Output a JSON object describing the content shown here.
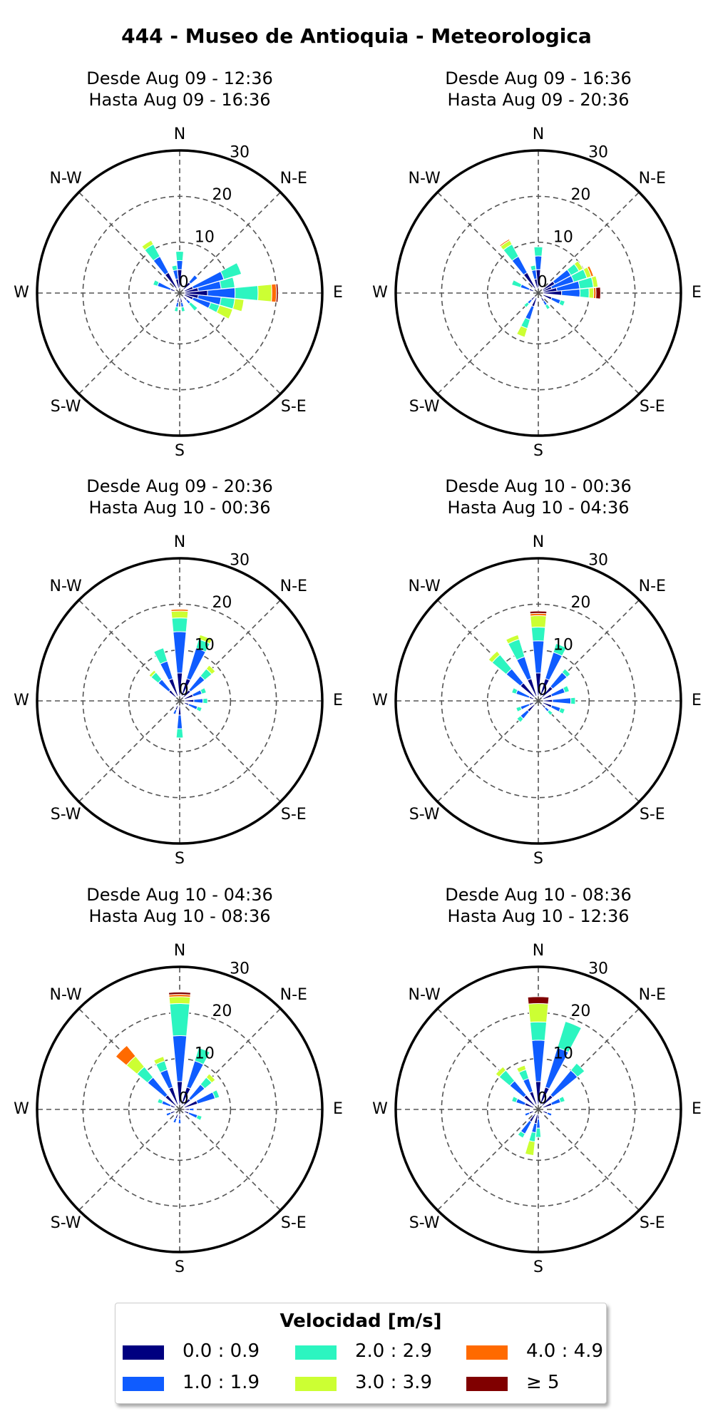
{
  "title": "444 - Museo de Antioquia - Meteorologica",
  "directions": [
    "N",
    "N-E",
    "E",
    "S-E",
    "S",
    "S-W",
    "W",
    "N-W"
  ],
  "radial_ticks": [
    "0",
    "10",
    "20",
    "30"
  ],
  "legend": {
    "title": "Velocidad [m/s]",
    "items": [
      {
        "label": "0.0 : 0.9",
        "color": "#000080"
      },
      {
        "label": "1.0 : 1.9",
        "color": "#0f5cff"
      },
      {
        "label": "2.0 : 2.9",
        "color": "#2cf5c0"
      },
      {
        "label": "3.0 : 3.9",
        "color": "#ccff33"
      },
      {
        "label": "4.0 : 4.9",
        "color": "#ff6a00"
      },
      {
        "label": "≥  5",
        "color": "#800000"
      }
    ]
  },
  "chart_data": [
    {
      "type": "windrose",
      "subtitle_line1": "Desde Aug 09 - 12:36",
      "subtitle_line2": "Hasta Aug 09 - 16:36",
      "rlim": [
        0,
        30
      ],
      "petals": [
        {
          "dir": 0,
          "segs": [
            4,
            2,
            2
          ]
        },
        {
          "dir": 45,
          "segs": [
            2,
            2
          ]
        },
        {
          "dir": 67.5,
          "segs": [
            2,
            7,
            4
          ]
        },
        {
          "dir": 78.75,
          "segs": [
            3,
            5,
            3
          ]
        },
        {
          "dir": 90,
          "segs": [
            5,
            6,
            5,
            3,
            1,
            0.4
          ]
        },
        {
          "dir": 101.25,
          "segs": [
            3,
            5,
            3,
            2
          ]
        },
        {
          "dir": 112.5,
          "segs": [
            2,
            4,
            2,
            3
          ]
        },
        {
          "dir": 135,
          "segs": [
            1,
            1,
            2
          ]
        },
        {
          "dir": 168.75,
          "segs": [
            1,
            1,
            1
          ]
        },
        {
          "dir": 191.25,
          "segs": [
            1,
            1,
            1
          ]
        },
        {
          "dir": 292.5,
          "segs": [
            1,
            3,
            1
          ]
        },
        {
          "dir": 326.25,
          "segs": [
            4,
            4,
            3,
            1
          ]
        },
        {
          "dir": 348.75,
          "segs": [
            2,
            2,
            1
          ]
        }
      ]
    },
    {
      "type": "windrose",
      "subtitle_line1": "Desde Aug 09 - 16:36",
      "subtitle_line2": "Hasta Aug 09 - 20:36",
      "rlim": [
        0,
        30
      ],
      "petals": [
        {
          "dir": 0,
          "segs": [
            4,
            3,
            2
          ]
        },
        {
          "dir": 56.25,
          "segs": [
            3,
            4,
            2,
            1
          ]
        },
        {
          "dir": 67.5,
          "segs": [
            2,
            5,
            3,
            1,
            0.5
          ]
        },
        {
          "dir": 78.75,
          "segs": [
            3,
            5,
            3,
            1
          ]
        },
        {
          "dir": 90,
          "segs": [
            4,
            4,
            2,
            1,
            0.5,
            1
          ]
        },
        {
          "dir": 112.5,
          "segs": [
            2,
            2,
            1
          ]
        },
        {
          "dir": 146.25,
          "segs": [
            1,
            1,
            1
          ]
        },
        {
          "dir": 202.5,
          "segs": [
            2,
            3,
            2,
            2
          ]
        },
        {
          "dir": 225,
          "segs": [
            1,
            1,
            1
          ]
        },
        {
          "dir": 292.5,
          "segs": [
            1,
            2,
            2
          ]
        },
        {
          "dir": 326.25,
          "segs": [
            4,
            4,
            3,
            1,
            0.3
          ]
        },
        {
          "dir": 348.75,
          "segs": [
            2,
            2,
            1
          ]
        }
      ]
    },
    {
      "type": "windrose",
      "subtitle_line1": "Desde Aug 09 - 20:36",
      "subtitle_line2": "Hasta Aug 10 - 00:36",
      "rlim": [
        0,
        30
      ],
      "petals": [
        {
          "dir": 0,
          "segs": [
            5,
            9,
            3,
            1.5,
            0.4
          ]
        },
        {
          "dir": 22.5,
          "segs": [
            4,
            7,
            2,
            1
          ]
        },
        {
          "dir": 45,
          "segs": [
            2,
            4,
            2,
            1
          ]
        },
        {
          "dir": 67.5,
          "segs": [
            2,
            2,
            1
          ]
        },
        {
          "dir": 90,
          "segs": [
            2,
            2,
            1
          ]
        },
        {
          "dir": 112.5,
          "segs": [
            1,
            2,
            1
          ]
        },
        {
          "dir": 180,
          "segs": [
            2,
            3,
            2
          ]
        },
        {
          "dir": 202.5,
          "segs": [
            1,
            1
          ]
        },
        {
          "dir": 315,
          "segs": [
            2,
            3,
            2,
            0.6
          ]
        },
        {
          "dir": 337.5,
          "segs": [
            4,
            4,
            3
          ]
        }
      ]
    },
    {
      "type": "windrose",
      "subtitle_line1": "Desde Aug 10 - 00:36",
      "subtitle_line2": "Hasta Aug 10 - 04:36",
      "rlim": [
        0,
        30
      ],
      "petals": [
        {
          "dir": 0,
          "segs": [
            5,
            7,
            3,
            2.5,
            0.5,
            0.5
          ]
        },
        {
          "dir": 22.5,
          "segs": [
            4,
            6,
            2
          ]
        },
        {
          "dir": 45,
          "segs": [
            3,
            4,
            1
          ]
        },
        {
          "dir": 67.5,
          "segs": [
            2,
            3,
            1
          ]
        },
        {
          "dir": 90,
          "segs": [
            2,
            4,
            1
          ]
        },
        {
          "dir": 112.5,
          "segs": [
            2,
            2,
            1
          ]
        },
        {
          "dir": 135,
          "segs": [
            1,
            1,
            1
          ]
        },
        {
          "dir": 225,
          "segs": [
            2,
            2,
            1
          ]
        },
        {
          "dir": 247.5,
          "segs": [
            1,
            2,
            1
          ]
        },
        {
          "dir": 292.5,
          "segs": [
            1,
            3,
            1
          ]
        },
        {
          "dir": 315,
          "segs": [
            4,
            4,
            4,
            1
          ]
        },
        {
          "dir": 337.5,
          "segs": [
            4,
            5,
            4,
            1
          ]
        }
      ]
    },
    {
      "type": "windrose",
      "subtitle_line1": "Desde Aug 10 - 04:36",
      "subtitle_line2": "Hasta Aug 10 - 08:36",
      "rlim": [
        0,
        30
      ],
      "petals": [
        {
          "dir": 0,
          "segs": [
            5,
            10,
            7,
            1.5,
            0.5,
            0.5
          ]
        },
        {
          "dir": 22.5,
          "segs": [
            4,
            6,
            3
          ]
        },
        {
          "dir": 45,
          "segs": [
            2,
            4,
            2,
            1
          ]
        },
        {
          "dir": 67.5,
          "segs": [
            3,
            4,
            1
          ]
        },
        {
          "dir": 90,
          "segs": [
            1,
            1
          ]
        },
        {
          "dir": 112.5,
          "segs": [
            1,
            2,
            1
          ]
        },
        {
          "dir": 180,
          "segs": [
            1,
            1
          ]
        },
        {
          "dir": 202.5,
          "segs": [
            1,
            1
          ]
        },
        {
          "dir": 247.5,
          "segs": [
            1,
            1
          ]
        },
        {
          "dir": 292.5,
          "segs": [
            1,
            2,
            1
          ]
        },
        {
          "dir": 315,
          "segs": [
            3,
            5,
            3,
            3,
            3
          ]
        },
        {
          "dir": 337.5,
          "segs": [
            4,
            4,
            2,
            1
          ]
        }
      ]
    },
    {
      "type": "windrose",
      "subtitle_line1": "Desde Aug 10 - 08:36",
      "subtitle_line2": "Hasta Aug 10 - 12:36",
      "rlim": [
        0,
        30
      ],
      "petals": [
        {
          "dir": 0,
          "segs": [
            5,
            9,
            4,
            4,
            0,
            1.5
          ]
        },
        {
          "dir": 22.5,
          "segs": [
            4,
            9,
            6
          ]
        },
        {
          "dir": 45,
          "segs": [
            3,
            7,
            2
          ]
        },
        {
          "dir": 67.5,
          "segs": [
            2,
            2,
            1
          ]
        },
        {
          "dir": 112.5,
          "segs": [
            1,
            1
          ]
        },
        {
          "dir": 180,
          "segs": [
            1,
            2,
            2
          ]
        },
        {
          "dir": 191.25,
          "segs": [
            2,
            2,
            2,
            3
          ]
        },
        {
          "dir": 213.75,
          "segs": [
            2,
            3,
            1
          ]
        },
        {
          "dir": 247.5,
          "segs": [
            1,
            1
          ]
        },
        {
          "dir": 292.5,
          "segs": [
            2,
            2,
            1
          ]
        },
        {
          "dir": 315,
          "segs": [
            3,
            4,
            3,
            1
          ]
        },
        {
          "dir": 337.5,
          "segs": [
            3,
            3,
            2,
            1
          ]
        }
      ]
    }
  ]
}
